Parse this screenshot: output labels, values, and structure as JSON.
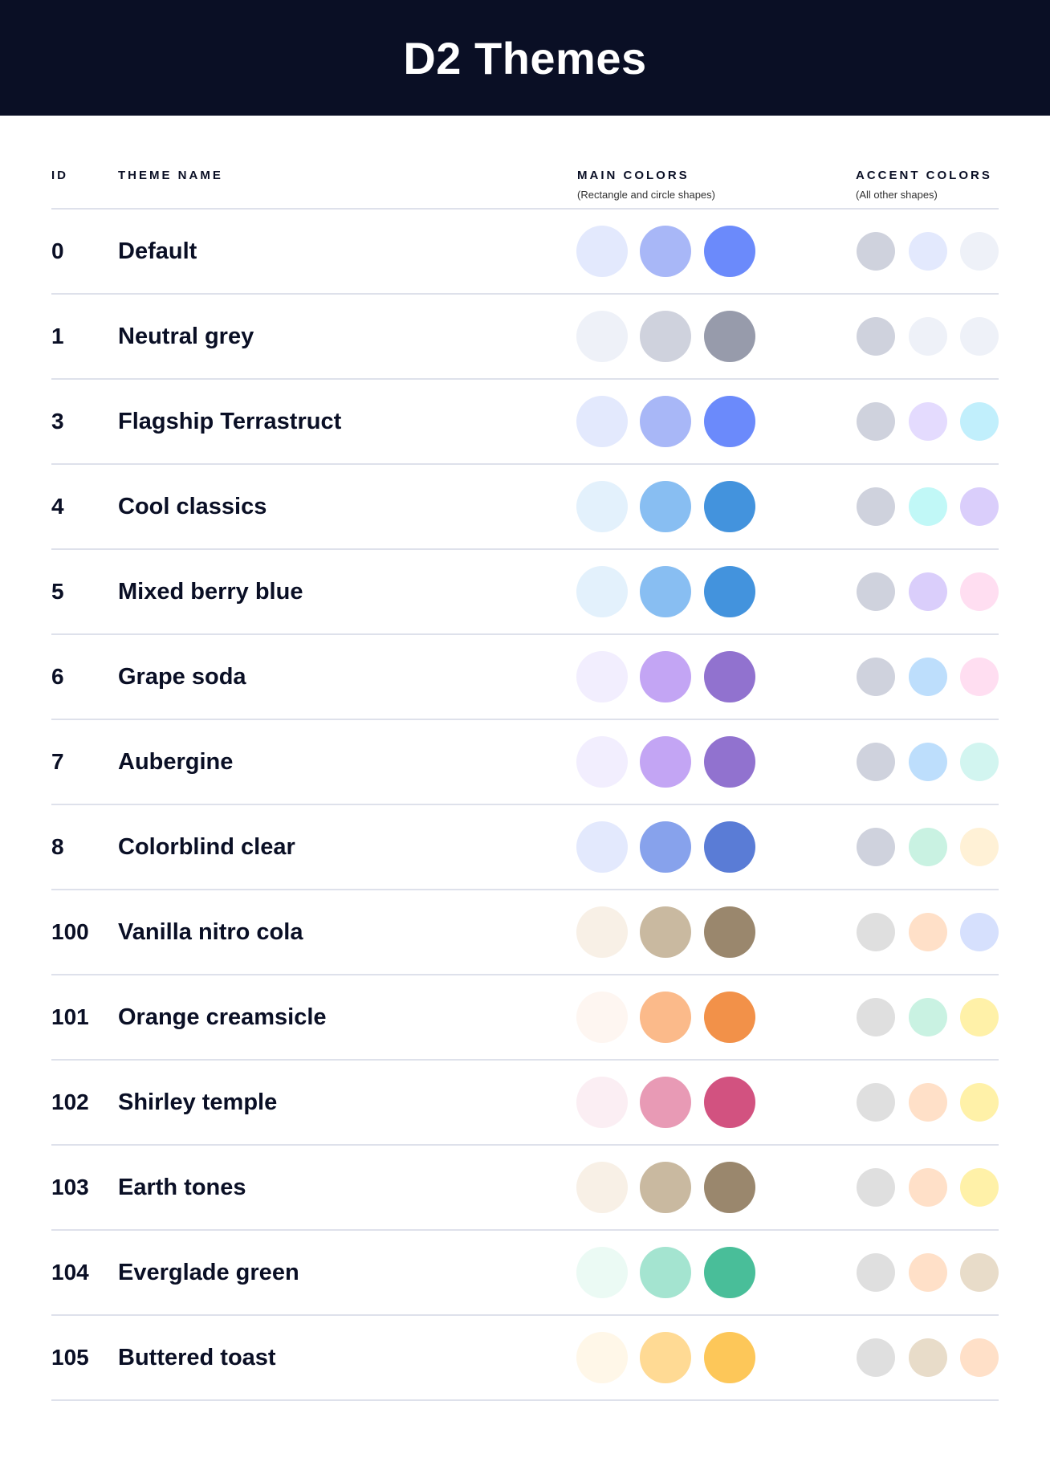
{
  "title": "D2 Themes",
  "headers": {
    "id": "ID",
    "name": "THEME NAME",
    "main": "MAIN COLORS",
    "main_sub": "(Rectangle and circle shapes)",
    "accent": "ACCENT COLORS",
    "accent_sub": "(All other shapes)"
  },
  "themes": [
    {
      "id": "0",
      "name": "Default",
      "main": [
        "#E3E9FD",
        "#A8B7F7",
        "#6B8AFB"
      ],
      "accent": [
        "#CFD2DD",
        "#E3E9FD",
        "#EEF1F8"
      ]
    },
    {
      "id": "1",
      "name": "Neutral grey",
      "main": [
        "#EEF1F8",
        "#CFD2DD",
        "#979BAB"
      ],
      "accent": [
        "#CFD2DD",
        "#EEF1F8",
        "#EEF1F8"
      ]
    },
    {
      "id": "3",
      "name": "Flagship Terrastruct",
      "main": [
        "#E3E9FD",
        "#A8B7F7",
        "#6B8AFB"
      ],
      "accent": [
        "#CFD2DD",
        "#E4DBFE",
        "#C1EFFC"
      ]
    },
    {
      "id": "4",
      "name": "Cool classics",
      "main": [
        "#E3F1FC",
        "#88BEF2",
        "#4393DD"
      ],
      "accent": [
        "#CFD2DD",
        "#C1F8F7",
        "#DACEFB"
      ]
    },
    {
      "id": "5",
      "name": "Mixed berry blue",
      "main": [
        "#E3F1FC",
        "#88BEF2",
        "#4393DD"
      ],
      "accent": [
        "#CFD2DD",
        "#DACEFB",
        "#FFDEF1"
      ]
    },
    {
      "id": "6",
      "name": "Grape soda",
      "main": [
        "#F2EEFE",
        "#C3A5F4",
        "#9172CF"
      ],
      "accent": [
        "#CFD2DD",
        "#BDDEFC",
        "#FFDEF1"
      ]
    },
    {
      "id": "7",
      "name": "Aubergine",
      "main": [
        "#F2EEFE",
        "#C3A5F4",
        "#9172CF"
      ],
      "accent": [
        "#CFD2DD",
        "#BDDEFC",
        "#D2F5F0"
      ]
    },
    {
      "id": "8",
      "name": "Colorblind clear",
      "main": [
        "#E3E9FD",
        "#87A2EC",
        "#5A7CD6"
      ],
      "accent": [
        "#CFD2DD",
        "#C9F2E2",
        "#FFF1D6"
      ]
    },
    {
      "id": "100",
      "name": "Vanilla nitro cola",
      "main": [
        "#F8F0E6",
        "#C9B9A0",
        "#9A876D"
      ],
      "accent": [
        "#DFDFDF",
        "#FFE0C8",
        "#D6E0FD"
      ]
    },
    {
      "id": "101",
      "name": "Orange creamsicle",
      "main": [
        "#FEF6F1",
        "#FBBA8A",
        "#F29149"
      ],
      "accent": [
        "#DFDFDF",
        "#C9F2E2",
        "#FFF1A8"
      ]
    },
    {
      "id": "102",
      "name": "Shirley temple",
      "main": [
        "#FBEEF3",
        "#E89AB5",
        "#D25280"
      ],
      "accent": [
        "#DFDFDF",
        "#FFE0C8",
        "#FFF1A8"
      ]
    },
    {
      "id": "103",
      "name": "Earth tones",
      "main": [
        "#F8F0E6",
        "#C9B9A0",
        "#9A876D"
      ],
      "accent": [
        "#DFDFDF",
        "#FFE0C8",
        "#FFF1A8"
      ]
    },
    {
      "id": "104",
      "name": "Everglade green",
      "main": [
        "#EBFAF4",
        "#A4E4D0",
        "#49BE99"
      ],
      "accent": [
        "#DFDFDF",
        "#FFE0C8",
        "#E8DCC9"
      ]
    },
    {
      "id": "105",
      "name": "Buttered toast",
      "main": [
        "#FFF7E8",
        "#FFDA94",
        "#FDC759"
      ],
      "accent": [
        "#DFDFDF",
        "#E8DCC9",
        "#FFE0C8"
      ]
    }
  ]
}
